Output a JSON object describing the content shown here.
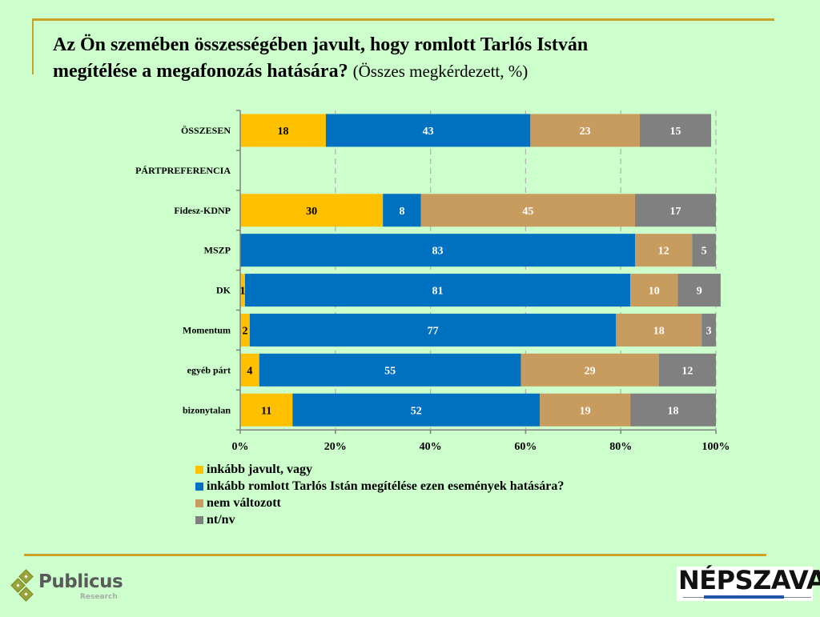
{
  "page": {
    "title_bold_line1": "Az Ön szemében összességében javult, hogy romlott Tarlós István",
    "title_bold_line2": "megítélése a megafonozás hatására?",
    "title_suffix": "(Összes megkérdezett, %)",
    "logo_left_name": "Publicus",
    "logo_left_sub": "Research",
    "logo_right": "NÉPSZAVA"
  },
  "chart_data": {
    "type": "bar",
    "orientation": "horizontal",
    "stacked": "100%",
    "title": "Az Ön szemében összességében javult, hogy romlott Tarlós István megítélése a megafonozás hatására? (Összes megkérdezett, %)",
    "categories": [
      "ÖSSZESEN",
      "PÁRTPREFERENCIA",
      "Fidesz-KDNP",
      "MSZP",
      "DK",
      "Momentum",
      "egyéb párt",
      "bizonytalan"
    ],
    "series": [
      {
        "name": "inkább javult, vagy",
        "color": "#ffc000",
        "label_color": "#000000",
        "values": [
          18,
          null,
          30,
          0,
          1,
          2,
          4,
          11
        ]
      },
      {
        "name": "inkább romlott Tarlós Istán megítélése ezen események hatására?",
        "color": "#0070c0",
        "label_color": "#ffffff",
        "values": [
          43,
          null,
          8,
          83,
          81,
          77,
          55,
          52
        ]
      },
      {
        "name": "nem változott",
        "color": "#c89b5f",
        "label_color": "#ffffff",
        "values": [
          23,
          null,
          45,
          12,
          10,
          18,
          29,
          19
        ]
      },
      {
        "name": "nt/nv",
        "color": "#808080",
        "label_color": "#ffffff",
        "values": [
          15,
          null,
          17,
          5,
          9,
          3,
          12,
          18
        ]
      }
    ],
    "xlabel": "",
    "ylabel": "",
    "xlim": [
      0,
      100
    ],
    "xticks": [
      "0%",
      "20%",
      "40%",
      "60%",
      "80%",
      "100%"
    ],
    "grid": "vertical dashed",
    "legend_position": "bottom-left"
  }
}
